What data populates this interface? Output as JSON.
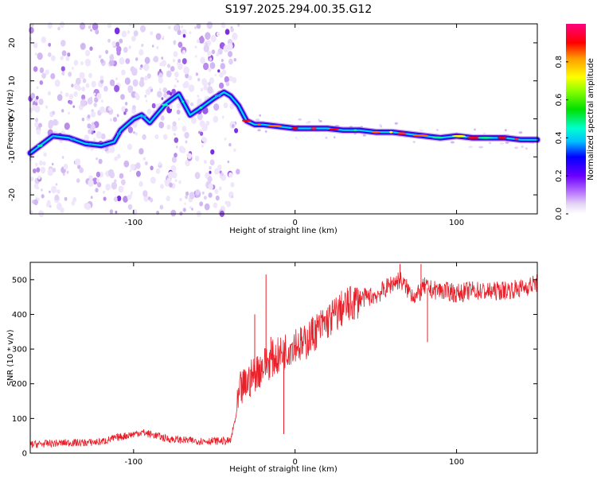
{
  "title": "S197.2025.294.00.35.G12",
  "chart_data": [
    {
      "type": "heatmap",
      "name": "spectrogram",
      "xlabel": "Height of straight line (km)",
      "ylabel": "Frequency (Hz)",
      "xlim": [
        -164,
        150
      ],
      "ylim": [
        -25,
        25
      ],
      "xticks": [
        -100,
        0,
        100
      ],
      "yticks": [
        -20,
        -10,
        0,
        10,
        20
      ],
      "colorbar": {
        "label": "Normalized spectral amplitude",
        "range": [
          0,
          1
        ],
        "ticks": [
          "0.0",
          "0.2",
          "0.4",
          "0.6",
          "0.8"
        ],
        "tick_values": [
          0,
          0.2,
          0.4,
          0.6,
          0.8
        ]
      },
      "trace": {
        "x": [
          -164,
          -150,
          -140,
          -130,
          -120,
          -112,
          -108,
          -100,
          -95,
          -90,
          -85,
          -80,
          -72,
          -65,
          -58,
          -50,
          -44,
          -40,
          -35,
          -30,
          -25,
          -20,
          -10,
          0,
          10,
          20,
          30,
          40,
          50,
          60,
          70,
          80,
          90,
          100,
          110,
          120,
          130,
          140,
          150
        ],
        "y": [
          -9,
          -4.5,
          -5,
          -6.5,
          -7,
          -6,
          -3,
          0,
          1,
          -1,
          1.5,
          4,
          6.5,
          1,
          3,
          5.5,
          7,
          6,
          3.5,
          -0.5,
          -1.5,
          -1.5,
          -2,
          -2.5,
          -2.5,
          -2.5,
          -3,
          -3,
          -3.5,
          -3.5,
          -4,
          -4.5,
          -5,
          -4.5,
          -5,
          -5,
          -5,
          -5.5,
          -5.5
        ]
      }
    },
    {
      "type": "line",
      "name": "snr",
      "xlabel": "Height of straight line (km)",
      "ylabel": "SNR (10 * v/v)",
      "xlim": [
        -164,
        150
      ],
      "ylim": [
        0,
        550
      ],
      "xticks": [
        -100,
        0,
        100
      ],
      "yticks": [
        0,
        100,
        200,
        300,
        400,
        500
      ],
      "color": "#e8202a",
      "series": {
        "x": [
          -164,
          -150,
          -140,
          -130,
          -120,
          -110,
          -100,
          -95,
          -90,
          -85,
          -80,
          -70,
          -60,
          -50,
          -40,
          -36,
          -34,
          -30,
          -25,
          -20,
          -15,
          -10,
          -5,
          0,
          5,
          10,
          15,
          20,
          25,
          30,
          35,
          40,
          45,
          50,
          55,
          60,
          65,
          70,
          75,
          80,
          85,
          90,
          100,
          110,
          120,
          130,
          140,
          150
        ],
        "y": [
          25,
          28,
          30,
          30,
          33,
          45,
          55,
          60,
          55,
          50,
          42,
          38,
          35,
          35,
          35,
          120,
          180,
          200,
          230,
          250,
          270,
          280,
          300,
          320,
          310,
          340,
          360,
          380,
          400,
          420,
          430,
          445,
          450,
          455,
          470,
          490,
          500,
          470,
          450,
          480,
          470,
          470,
          460,
          470,
          465,
          470,
          475,
          490
        ]
      },
      "spikes": [
        {
          "x": -25,
          "y": 400
        },
        {
          "x": -18,
          "y": 515
        },
        {
          "x": -15,
          "y": 335
        },
        {
          "x": -7,
          "y": 55
        },
        {
          "x": 65,
          "y": 545
        },
        {
          "x": 78,
          "y": 545
        },
        {
          "x": 82,
          "y": 320
        },
        {
          "x": 97,
          "y": 490
        }
      ]
    }
  ]
}
